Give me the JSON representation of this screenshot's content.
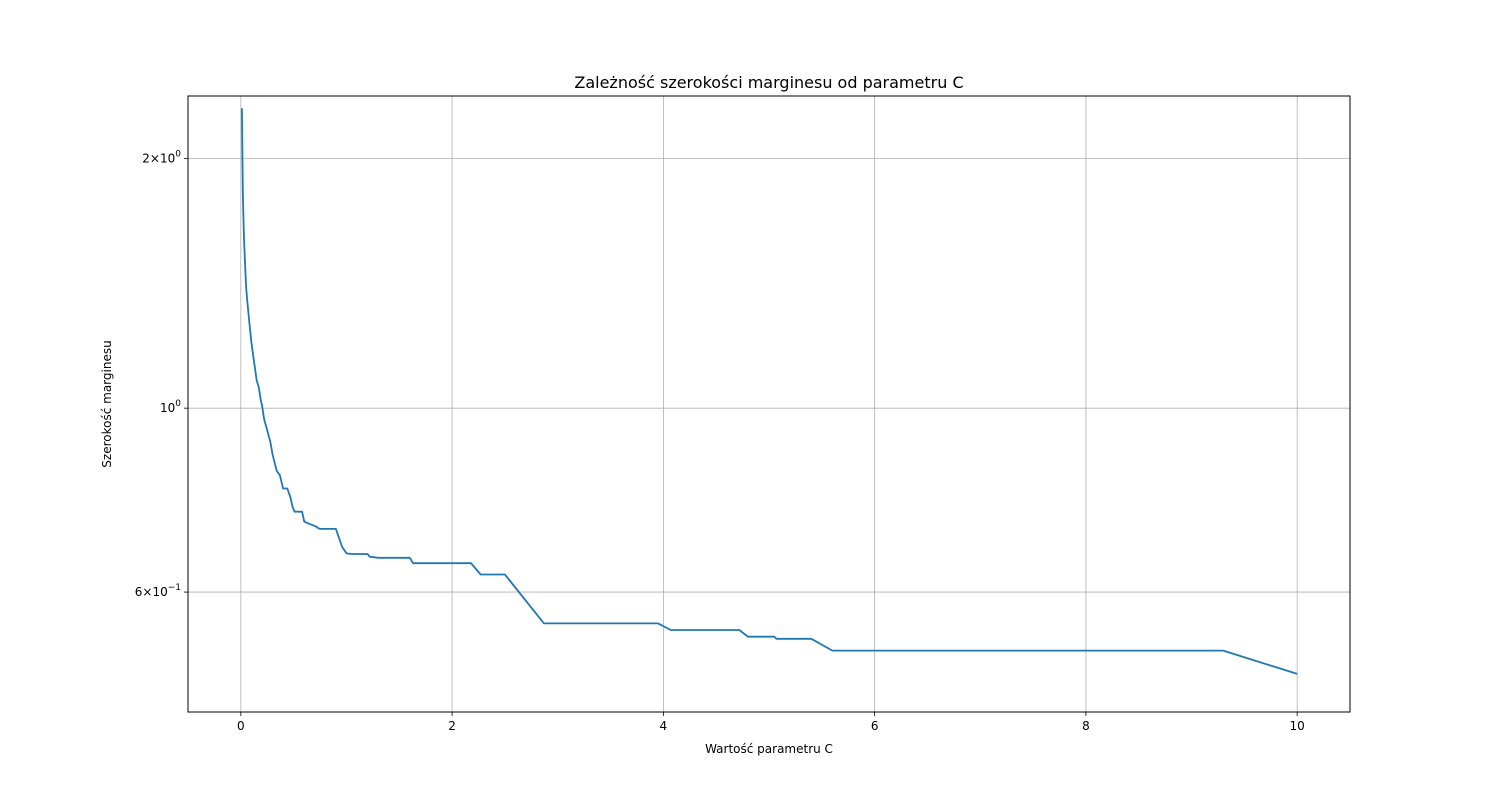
{
  "chart_data": {
    "type": "line",
    "title": "Zależność szerokości marginesu od parametru C",
    "xlabel": "Wartość parametru C",
    "ylabel": "Szerokość marginesu",
    "xlim": [
      -0.5,
      10.5
    ],
    "ylim": [
      0.43,
      2.38
    ],
    "yscale": "log",
    "grid": true,
    "line_color": "#1f77b4",
    "x_ticks": [
      {
        "value": 0,
        "label": "0"
      },
      {
        "value": 2,
        "label": "2"
      },
      {
        "value": 4,
        "label": "4"
      },
      {
        "value": 6,
        "label": "6"
      },
      {
        "value": 8,
        "label": "8"
      },
      {
        "value": 10,
        "label": "10"
      }
    ],
    "y_ticks": [
      {
        "value": 2,
        "mant": "2",
        "exp": "0"
      },
      {
        "value": 1,
        "mant": "",
        "exp": "0"
      },
      {
        "value": 0.6,
        "mant": "6",
        "exp": "−1"
      }
    ],
    "series": [
      {
        "x": [
          0.01,
          0.02,
          0.03,
          0.04,
          0.05,
          0.06,
          0.08,
          0.1,
          0.12,
          0.15,
          0.17,
          0.19,
          0.2,
          0.22,
          0.24,
          0.26,
          0.28,
          0.3,
          0.32,
          0.34,
          0.37,
          0.4,
          0.44,
          0.47,
          0.49,
          0.51,
          0.58,
          0.6,
          0.65,
          0.71,
          0.73,
          0.75,
          0.9,
          0.96,
          1.0,
          1.05,
          1.2,
          1.22,
          1.3,
          1.6,
          1.63,
          1.7,
          2.18,
          2.27,
          2.5,
          2.87,
          3.95,
          4.07,
          4.72,
          4.8,
          5.05,
          5.07,
          5.4,
          5.6,
          9.3,
          10.0
        ],
        "y": [
          2.3,
          1.8,
          1.6,
          1.5,
          1.4,
          1.35,
          1.27,
          1.2,
          1.15,
          1.08,
          1.06,
          1.02,
          1.01,
          0.97,
          0.95,
          0.93,
          0.91,
          0.88,
          0.86,
          0.84,
          0.83,
          0.8,
          0.8,
          0.78,
          0.76,
          0.75,
          0.75,
          0.73,
          0.725,
          0.72,
          0.717,
          0.715,
          0.715,
          0.68,
          0.668,
          0.667,
          0.667,
          0.662,
          0.66,
          0.66,
          0.65,
          0.65,
          0.65,
          0.63,
          0.63,
          0.55,
          0.55,
          0.54,
          0.54,
          0.53,
          0.53,
          0.527,
          0.527,
          0.51,
          0.51,
          0.478
        ]
      }
    ]
  }
}
